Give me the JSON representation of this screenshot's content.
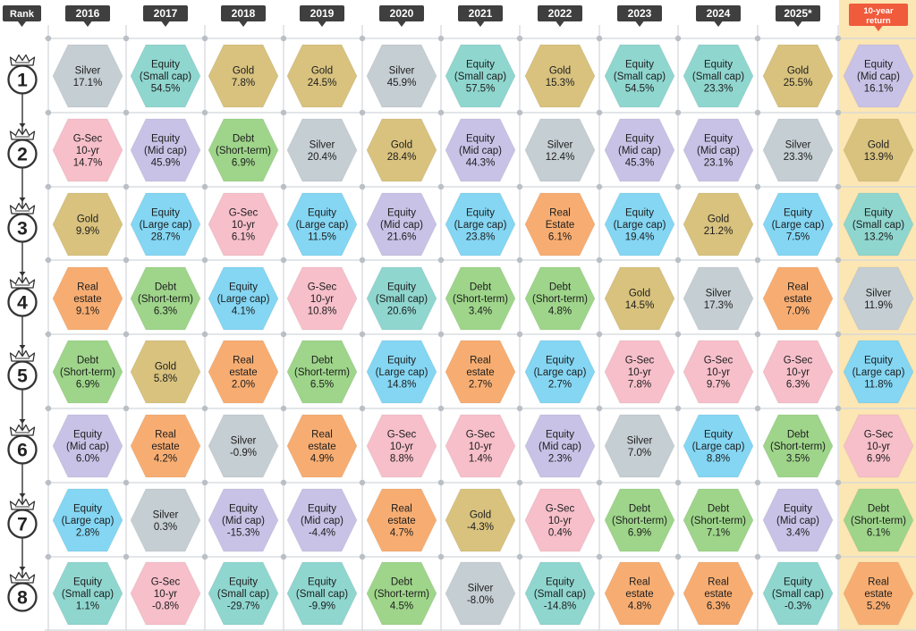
{
  "chart_data": {
    "type": "table",
    "rank_header": "Rank",
    "columns": [
      "2016",
      "2017",
      "2018",
      "2019",
      "2020",
      "2021",
      "2022",
      "2023",
      "2024",
      "2025*",
      "10-year return"
    ],
    "ranks": [
      "1",
      "2",
      "3",
      "4",
      "5",
      "6",
      "7",
      "8"
    ],
    "colors": {
      "Silver": "#c5ced3",
      "Equity (Small cap)": "#8fd6cf",
      "Gold": "#d8c27e",
      "Equity (Mid cap)": "#c8c2e6",
      "G-Sec 10-yr": "#f6bfca",
      "Debt (Short-term)": "#9ed58a",
      "Equity (Large cap)": "#84d6f3",
      "Real estate": "#f7ad72",
      "highlight_bg": "#fce6b3",
      "highlight_header": "#f05b3c",
      "header": "#3f3f3f"
    },
    "cells": [
      [
        {
          "asset": "Silver",
          "lines": [
            "Silver"
          ],
          "value": "17.1%"
        },
        {
          "asset": "Equity (Small cap)",
          "lines": [
            "Equity",
            "(Small cap)"
          ],
          "value": "54.5%"
        },
        {
          "asset": "Gold",
          "lines": [
            "Gold"
          ],
          "value": "7.8%"
        },
        {
          "asset": "Gold",
          "lines": [
            "Gold"
          ],
          "value": "24.5%"
        },
        {
          "asset": "Silver",
          "lines": [
            "Silver"
          ],
          "value": "45.9%"
        },
        {
          "asset": "Equity (Small cap)",
          "lines": [
            "Equity",
            "(Small cap)"
          ],
          "value": "57.5%"
        },
        {
          "asset": "Gold",
          "lines": [
            "Gold"
          ],
          "value": "15.3%"
        },
        {
          "asset": "Equity (Small cap)",
          "lines": [
            "Equity",
            "(Small cap)"
          ],
          "value": "54.5%"
        },
        {
          "asset": "Equity (Small cap)",
          "lines": [
            "Equity",
            "(Small cap)"
          ],
          "value": "23.3%"
        },
        {
          "asset": "Gold",
          "lines": [
            "Gold"
          ],
          "value": "25.5%"
        },
        {
          "asset": "Equity (Mid cap)",
          "lines": [
            "Equity",
            "(Mid cap)"
          ],
          "value": "16.1%"
        }
      ],
      [
        {
          "asset": "G-Sec 10-yr",
          "lines": [
            "G-Sec",
            "10-yr"
          ],
          "value": "14.7%"
        },
        {
          "asset": "Equity (Mid cap)",
          "lines": [
            "Equity",
            "(Mid cap)"
          ],
          "value": "45.9%"
        },
        {
          "asset": "Debt (Short-term)",
          "lines": [
            "Debt",
            "(Short-term)"
          ],
          "value": "6.9%"
        },
        {
          "asset": "Silver",
          "lines": [
            "Silver"
          ],
          "value": "20.4%"
        },
        {
          "asset": "Gold",
          "lines": [
            "Gold"
          ],
          "value": "28.4%"
        },
        {
          "asset": "Equity (Mid cap)",
          "lines": [
            "Equity",
            "(Mid cap)"
          ],
          "value": "44.3%"
        },
        {
          "asset": "Silver",
          "lines": [
            "Silver"
          ],
          "value": "12.4%"
        },
        {
          "asset": "Equity (Mid cap)",
          "lines": [
            "Equity",
            "(Mid cap)"
          ],
          "value": "45.3%"
        },
        {
          "asset": "Equity (Mid cap)",
          "lines": [
            "Equity",
            "(Mid cap)"
          ],
          "value": "23.1%"
        },
        {
          "asset": "Silver",
          "lines": [
            "Silver"
          ],
          "value": "23.3%"
        },
        {
          "asset": "Gold",
          "lines": [
            "Gold"
          ],
          "value": "13.9%"
        }
      ],
      [
        {
          "asset": "Gold",
          "lines": [
            "Gold"
          ],
          "value": "9.9%"
        },
        {
          "asset": "Equity (Large cap)",
          "lines": [
            "Equity",
            "(Large cap)"
          ],
          "value": "28.7%"
        },
        {
          "asset": "G-Sec 10-yr",
          "lines": [
            "G-Sec",
            "10-yr"
          ],
          "value": "6.1%"
        },
        {
          "asset": "Equity (Large cap)",
          "lines": [
            "Equity",
            "(Large cap)"
          ],
          "value": "11.5%"
        },
        {
          "asset": "Equity (Mid cap)",
          "lines": [
            "Equity",
            "(Mid cap)"
          ],
          "value": "21.6%"
        },
        {
          "asset": "Equity (Large cap)",
          "lines": [
            "Equity",
            "(Large cap)"
          ],
          "value": "23.8%"
        },
        {
          "asset": "Real estate",
          "lines": [
            "Real",
            "Estate"
          ],
          "value": "6.1%"
        },
        {
          "asset": "Equity (Large cap)",
          "lines": [
            "Equity",
            "(Large cap)"
          ],
          "value": "19.4%"
        },
        {
          "asset": "Gold",
          "lines": [
            "Gold"
          ],
          "value": "21.2%"
        },
        {
          "asset": "Equity (Large cap)",
          "lines": [
            "Equity",
            "(Large cap)"
          ],
          "value": "7.5%"
        },
        {
          "asset": "Equity (Small cap)",
          "lines": [
            "Equity",
            "(Small cap)"
          ],
          "value": "13.2%"
        }
      ],
      [
        {
          "asset": "Real estate",
          "lines": [
            "Real",
            "estate"
          ],
          "value": "9.1%"
        },
        {
          "asset": "Debt (Short-term)",
          "lines": [
            "Debt",
            "(Short-term)"
          ],
          "value": "6.3%"
        },
        {
          "asset": "Equity (Large cap)",
          "lines": [
            "Equity",
            "(Large cap)"
          ],
          "value": "4.1%"
        },
        {
          "asset": "G-Sec 10-yr",
          "lines": [
            "G-Sec",
            "10-yr"
          ],
          "value": "10.8%"
        },
        {
          "asset": "Equity (Small cap)",
          "lines": [
            "Equity",
            "(Small cap)"
          ],
          "value": "20.6%"
        },
        {
          "asset": "Debt (Short-term)",
          "lines": [
            "Debt",
            "(Short-term)"
          ],
          "value": "3.4%"
        },
        {
          "asset": "Debt (Short-term)",
          "lines": [
            "Debt",
            "(Short-term)"
          ],
          "value": "4.8%"
        },
        {
          "asset": "Gold",
          "lines": [
            "Gold"
          ],
          "value": "14.5%"
        },
        {
          "asset": "Silver",
          "lines": [
            "Silver"
          ],
          "value": "17.3%"
        },
        {
          "asset": "Real estate",
          "lines": [
            "Real",
            "estate"
          ],
          "value": "7.0%"
        },
        {
          "asset": "Silver",
          "lines": [
            "Silver"
          ],
          "value": "11.9%"
        }
      ],
      [
        {
          "asset": "Debt (Short-term)",
          "lines": [
            "Debt",
            "(Short-term)"
          ],
          "value": "6.9%"
        },
        {
          "asset": "Gold",
          "lines": [
            "Gold"
          ],
          "value": "5.8%"
        },
        {
          "asset": "Real estate",
          "lines": [
            "Real",
            "estate"
          ],
          "value": "2.0%"
        },
        {
          "asset": "Debt (Short-term)",
          "lines": [
            "Debt",
            "(Short-term)"
          ],
          "value": "6.5%"
        },
        {
          "asset": "Equity (Large cap)",
          "lines": [
            "Equity",
            "(Large cap)"
          ],
          "value": "14.8%"
        },
        {
          "asset": "Real estate",
          "lines": [
            "Real",
            "estate"
          ],
          "value": "2.7%"
        },
        {
          "asset": "Equity (Large cap)",
          "lines": [
            "Equity",
            "(Large cap)"
          ],
          "value": "2.7%"
        },
        {
          "asset": "G-Sec 10-yr",
          "lines": [
            "G-Sec",
            "10-yr"
          ],
          "value": "7.8%"
        },
        {
          "asset": "G-Sec 10-yr",
          "lines": [
            "G-Sec",
            "10-yr"
          ],
          "value": "9.7%"
        },
        {
          "asset": "G-Sec 10-yr",
          "lines": [
            "G-Sec",
            "10-yr"
          ],
          "value": "6.3%"
        },
        {
          "asset": "Equity (Large cap)",
          "lines": [
            "Equity",
            "(Large cap)"
          ],
          "value": "11.8%"
        }
      ],
      [
        {
          "asset": "Equity (Mid cap)",
          "lines": [
            "Equity",
            "(Mid cap)"
          ],
          "value": "6.0%"
        },
        {
          "asset": "Real estate",
          "lines": [
            "Real",
            "estate"
          ],
          "value": "4.2%"
        },
        {
          "asset": "Silver",
          "lines": [
            "Silver"
          ],
          "value": "-0.9%"
        },
        {
          "asset": "Real estate",
          "lines": [
            "Real",
            "estate"
          ],
          "value": "4.9%"
        },
        {
          "asset": "G-Sec 10-yr",
          "lines": [
            "G-Sec",
            "10-yr"
          ],
          "value": "8.8%"
        },
        {
          "asset": "G-Sec 10-yr",
          "lines": [
            "G-Sec",
            "10-yr"
          ],
          "value": "1.4%"
        },
        {
          "asset": "Equity (Mid cap)",
          "lines": [
            "Equity",
            "(Mid cap)"
          ],
          "value": "2.3%"
        },
        {
          "asset": "Silver",
          "lines": [
            "Silver"
          ],
          "value": "7.0%"
        },
        {
          "asset": "Equity (Large cap)",
          "lines": [
            "Equity",
            "(Large cap)"
          ],
          "value": "8.8%"
        },
        {
          "asset": "Debt (Short-term)",
          "lines": [
            "Debt",
            "(Short-term)"
          ],
          "value": "3.5%"
        },
        {
          "asset": "G-Sec 10-yr",
          "lines": [
            "G-Sec",
            "10-yr"
          ],
          "value": "6.9%"
        }
      ],
      [
        {
          "asset": "Equity (Large cap)",
          "lines": [
            "Equity",
            "(Large cap)"
          ],
          "value": "2.8%"
        },
        {
          "asset": "Silver",
          "lines": [
            "Silver"
          ],
          "value": "0.3%"
        },
        {
          "asset": "Equity (Mid cap)",
          "lines": [
            "Equity",
            "(Mid cap)"
          ],
          "value": "-15.3%"
        },
        {
          "asset": "Equity (Mid cap)",
          "lines": [
            "Equity",
            "(Mid cap)"
          ],
          "value": "-4.4%"
        },
        {
          "asset": "Real estate",
          "lines": [
            "Real",
            "estate"
          ],
          "value": "4.7%"
        },
        {
          "asset": "Gold",
          "lines": [
            "Gold"
          ],
          "value": "-4.3%"
        },
        {
          "asset": "G-Sec 10-yr",
          "lines": [
            "G-Sec",
            "10-yr"
          ],
          "value": "0.4%"
        },
        {
          "asset": "Debt (Short-term)",
          "lines": [
            "Debt",
            "(Short-term)"
          ],
          "value": "6.9%"
        },
        {
          "asset": "Debt (Short-term)",
          "lines": [
            "Debt",
            "(Short-term)"
          ],
          "value": "7.1%"
        },
        {
          "asset": "Equity (Mid cap)",
          "lines": [
            "Equity",
            "(Mid cap)"
          ],
          "value": "3.4%"
        },
        {
          "asset": "Debt (Short-term)",
          "lines": [
            "Debt",
            "(Short-term)"
          ],
          "value": "6.1%"
        }
      ],
      [
        {
          "asset": "Equity (Small cap)",
          "lines": [
            "Equity",
            "(Small cap)"
          ],
          "value": "1.1%"
        },
        {
          "asset": "G-Sec 10-yr",
          "lines": [
            "G-Sec",
            "10-yr"
          ],
          "value": "-0.8%"
        },
        {
          "asset": "Equity (Small cap)",
          "lines": [
            "Equity",
            "(Small cap)"
          ],
          "value": "-29.7%"
        },
        {
          "asset": "Equity (Small cap)",
          "lines": [
            "Equity",
            "(Small cap)"
          ],
          "value": "-9.9%"
        },
        {
          "asset": "Debt (Short-term)",
          "lines": [
            "Debt",
            "(Short-term)"
          ],
          "value": "4.5%"
        },
        {
          "asset": "Silver",
          "lines": [
            "Silver"
          ],
          "value": "-8.0%"
        },
        {
          "asset": "Equity (Small cap)",
          "lines": [
            "Equity",
            "(Small cap)"
          ],
          "value": "-14.8%"
        },
        {
          "asset": "Real estate",
          "lines": [
            "Real",
            "estate"
          ],
          "value": "4.8%"
        },
        {
          "asset": "Real estate",
          "lines": [
            "Real",
            "estate"
          ],
          "value": "6.3%"
        },
        {
          "asset": "Equity (Small cap)",
          "lines": [
            "Equity",
            "(Small cap)"
          ],
          "value": "-0.3%"
        },
        {
          "asset": "Real estate",
          "lines": [
            "Real",
            "estate"
          ],
          "value": "5.2%"
        }
      ]
    ]
  }
}
